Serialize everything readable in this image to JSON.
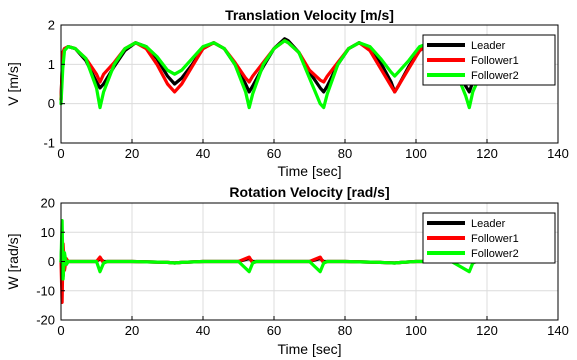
{
  "chart_data": [
    {
      "type": "line",
      "title": "Translation Velocity [m/s]",
      "xlabel": "Time [sec]",
      "ylabel": "V [m/s]",
      "xlim": [
        0,
        140
      ],
      "ylim": [
        -1,
        2
      ],
      "xticks": [
        0,
        20,
        40,
        60,
        80,
        100,
        120,
        140
      ],
      "yticks": [
        -1,
        0,
        1,
        2
      ],
      "xtick_labels": [
        "0",
        "20",
        "40",
        "60",
        "80",
        "100",
        "120",
        "140"
      ],
      "ytick_labels": [
        "-1",
        "0",
        "1",
        "2"
      ],
      "grid": true,
      "legend_position": "top-right",
      "series": [
        {
          "name": "Leader",
          "color": "#000000",
          "x": [
            0,
            0.5,
            1,
            2,
            4,
            7,
            10,
            11,
            12,
            15,
            18,
            21,
            24,
            27,
            30,
            32,
            34,
            37,
            40,
            43,
            46,
            49,
            52,
            53,
            54,
            57,
            60,
            63,
            64,
            67,
            70,
            73,
            74,
            75,
            78,
            81,
            84,
            87,
            90,
            93,
            94,
            95,
            98,
            101,
            104,
            107,
            110,
            114,
            115,
            116,
            118
          ],
          "values": [
            0.1,
            1.3,
            1.4,
            1.45,
            1.4,
            1.1,
            0.55,
            0.4,
            0.5,
            0.95,
            1.35,
            1.55,
            1.45,
            1.15,
            0.7,
            0.5,
            0.65,
            1.0,
            1.4,
            1.55,
            1.4,
            1.0,
            0.5,
            0.3,
            0.45,
            0.95,
            1.4,
            1.65,
            1.6,
            1.3,
            0.8,
            0.4,
            0.3,
            0.45,
            1.0,
            1.4,
            1.55,
            1.4,
            1.05,
            0.55,
            0.3,
            0.45,
            0.95,
            1.35,
            1.55,
            1.45,
            1.2,
            0.45,
            0.3,
            0.55,
            0.9
          ]
        },
        {
          "name": "Follower1",
          "color": "#ff0000",
          "x": [
            0,
            0.5,
            1,
            2,
            4,
            7,
            10,
            11,
            12,
            15,
            18,
            21,
            24,
            27,
            30,
            32,
            34,
            37,
            40,
            43,
            46,
            49,
            52,
            53,
            54,
            57,
            60,
            63,
            64,
            67,
            70,
            73,
            74,
            75,
            78,
            81,
            84,
            87,
            90,
            93,
            94,
            95,
            98,
            101,
            104,
            107,
            110,
            114,
            115,
            116,
            118
          ],
          "values": [
            0.1,
            1.3,
            1.4,
            1.45,
            1.4,
            1.15,
            0.75,
            0.55,
            0.75,
            1.05,
            1.4,
            1.55,
            1.4,
            1.0,
            0.5,
            0.3,
            0.5,
            0.95,
            1.4,
            1.55,
            1.4,
            1.05,
            0.65,
            0.55,
            0.7,
            1.05,
            1.4,
            1.6,
            1.55,
            1.3,
            0.85,
            0.6,
            0.55,
            0.7,
            1.05,
            1.4,
            1.55,
            1.35,
            0.9,
            0.45,
            0.3,
            0.45,
            0.9,
            1.35,
            1.55,
            1.45,
            1.2,
            0.7,
            0.6,
            0.75,
            1.0
          ]
        },
        {
          "name": "Follower2",
          "color": "#00ff00",
          "x": [
            0,
            0.5,
            1,
            2,
            4,
            7,
            10,
            11,
            12,
            15,
            18,
            21,
            24,
            27,
            30,
            32,
            34,
            37,
            40,
            43,
            46,
            49,
            52,
            53,
            54,
            57,
            60,
            63,
            64,
            67,
            70,
            73,
            74,
            75,
            78,
            81,
            84,
            87,
            90,
            93,
            94,
            95,
            98,
            101,
            104,
            107,
            110,
            114,
            115,
            116,
            118
          ],
          "values": [
            0.0,
            0.9,
            1.35,
            1.45,
            1.4,
            1.15,
            0.4,
            -0.1,
            0.3,
            1.0,
            1.4,
            1.55,
            1.45,
            1.2,
            0.85,
            0.75,
            0.85,
            1.15,
            1.45,
            1.55,
            1.4,
            1.0,
            0.3,
            -0.1,
            0.25,
            1.0,
            1.4,
            1.6,
            1.55,
            1.3,
            0.65,
            0.0,
            -0.1,
            0.25,
            1.0,
            1.4,
            1.55,
            1.45,
            1.15,
            0.8,
            0.7,
            0.8,
            1.1,
            1.45,
            1.55,
            1.45,
            1.1,
            0.2,
            -0.1,
            0.3,
            0.7
          ]
        }
      ]
    },
    {
      "type": "line",
      "title": "Rotation Velocity [rad/s]",
      "xlabel": "Time [sec]",
      "ylabel": "W [rad/s]",
      "xlim": [
        0,
        140
      ],
      "ylim": [
        -20,
        20
      ],
      "xticks": [
        0,
        20,
        40,
        60,
        80,
        100,
        120,
        140
      ],
      "yticks": [
        -20,
        -10,
        0,
        10,
        20
      ],
      "xtick_labels": [
        "0",
        "20",
        "40",
        "60",
        "80",
        "100",
        "120",
        "140"
      ],
      "ytick_labels": [
        "-20",
        "-10",
        "0",
        "10",
        "20"
      ],
      "grid": true,
      "legend_position": "top-right",
      "series": [
        {
          "name": "Leader",
          "color": "#000000",
          "x": [
            0,
            0.3,
            0.6,
            1,
            1.5,
            2,
            5,
            10,
            11,
            12,
            13,
            20,
            30,
            32,
            34,
            40,
            50,
            53,
            54,
            55,
            60,
            70,
            73,
            74,
            75,
            80,
            90,
            94,
            96,
            100,
            110,
            115,
            116,
            117,
            120,
            130
          ],
          "values": [
            0,
            8,
            -5,
            2,
            -1,
            0,
            0,
            0,
            1.0,
            0,
            0,
            0,
            -0.3,
            -0.5,
            -0.3,
            0,
            0,
            1.0,
            0,
            0,
            0,
            0,
            1.0,
            0,
            0,
            0,
            -0.3,
            -0.5,
            -0.3,
            0,
            0,
            1.0,
            0,
            0,
            0,
            0.1
          ]
        },
        {
          "name": "Follower1",
          "color": "#ff0000",
          "x": [
            0,
            0.3,
            0.6,
            1,
            1.5,
            2,
            5,
            10,
            11,
            12,
            13,
            20,
            30,
            32,
            34,
            40,
            50,
            53,
            54,
            55,
            60,
            70,
            73,
            74,
            75,
            80,
            90,
            94,
            96,
            100,
            110,
            115,
            116,
            117,
            120,
            130
          ],
          "values": [
            0,
            -14,
            6,
            -3,
            1,
            0,
            0,
            0,
            1.5,
            -0.5,
            0,
            0,
            -0.3,
            -0.5,
            -0.3,
            0,
            0,
            1.5,
            -0.5,
            0,
            0,
            0,
            1.5,
            -0.5,
            0,
            0,
            -0.3,
            -0.5,
            -0.3,
            0,
            0,
            1.5,
            -0.5,
            0,
            0,
            0.1
          ]
        },
        {
          "name": "Follower2",
          "color": "#00ff00",
          "x": [
            0,
            0.3,
            0.6,
            1,
            1.5,
            2,
            5,
            10,
            11,
            12,
            13,
            20,
            30,
            32,
            34,
            40,
            50,
            53,
            54,
            55,
            60,
            70,
            73,
            74,
            75,
            80,
            90,
            94,
            96,
            100,
            110,
            115,
            116,
            117,
            120,
            130
          ],
          "values": [
            0,
            14,
            -6,
            3,
            -1,
            0,
            0,
            0,
            -3.5,
            -0.5,
            0,
            0,
            -0.3,
            -0.5,
            -0.3,
            0,
            0,
            -3.5,
            -0.5,
            0,
            0,
            0,
            -3.5,
            -0.5,
            0,
            0,
            -0.3,
            -0.5,
            -0.3,
            0,
            0,
            -3.5,
            -0.5,
            0,
            0,
            0.1
          ]
        }
      ]
    }
  ]
}
